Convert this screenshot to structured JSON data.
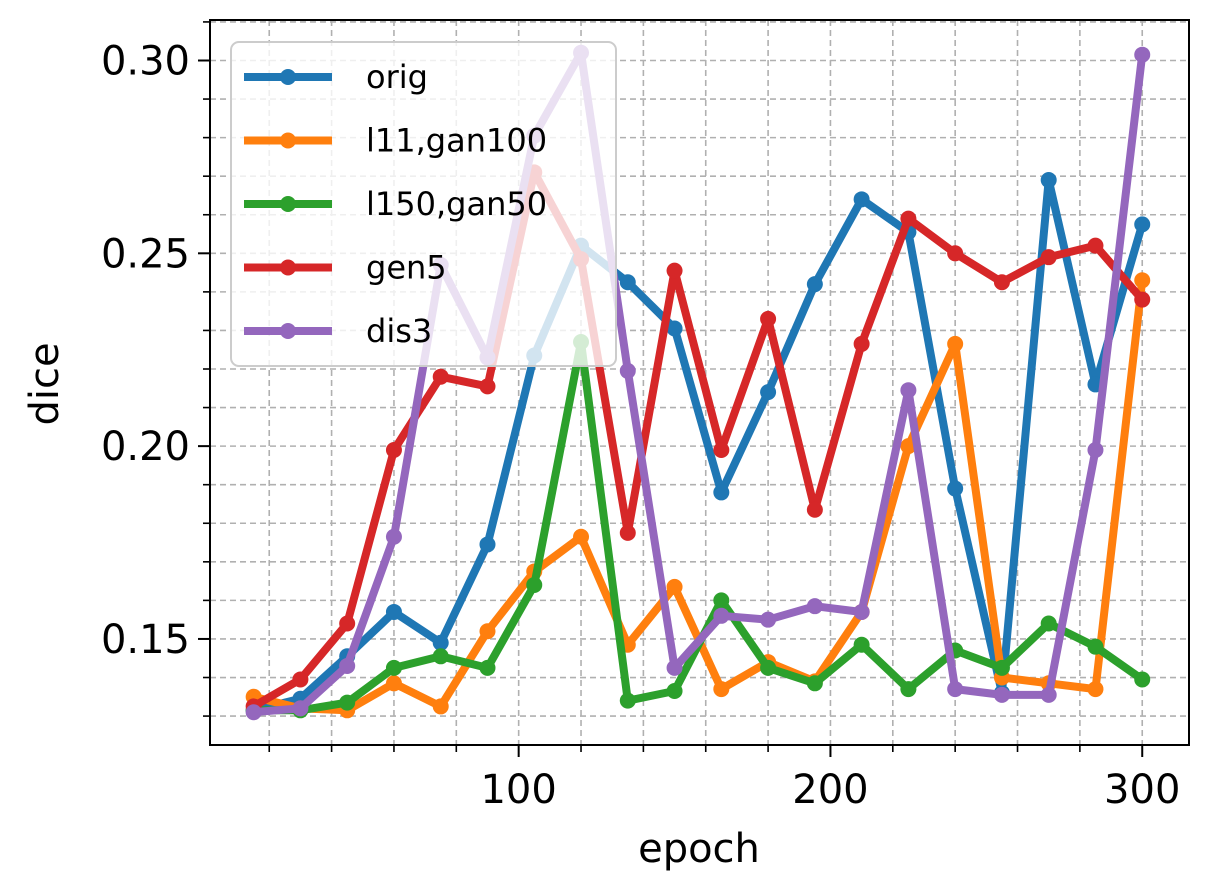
{
  "chart_data": {
    "type": "line",
    "xlabel": "epoch",
    "ylabel": "dice",
    "xlim": [
      1,
      315
    ],
    "ylim": [
      0.1225,
      0.3105
    ],
    "x_major_ticks": [
      100,
      200,
      300
    ],
    "x_major_tick_labels": [
      "100",
      "200",
      "300"
    ],
    "x_minor_ticks": [
      20,
      40,
      60,
      80,
      120,
      140,
      160,
      180,
      220,
      240,
      260,
      280
    ],
    "y_major_ticks": [
      0.15,
      0.2,
      0.25,
      0.3
    ],
    "y_major_tick_labels": [
      "0.15",
      "0.20",
      "0.25",
      "0.30"
    ],
    "y_minor_ticks": [
      0.13,
      0.14,
      0.16,
      0.17,
      0.18,
      0.19,
      0.21,
      0.22,
      0.23,
      0.24,
      0.26,
      0.27,
      0.28,
      0.29,
      0.31
    ],
    "grid": true,
    "legend_position": "top-left",
    "x": [
      15,
      30,
      45,
      60,
      75,
      90,
      105,
      120,
      135,
      150,
      165,
      180,
      195,
      210,
      225,
      240,
      255,
      270,
      285,
      300
    ],
    "series": [
      {
        "name": "orig",
        "color": "#1f77b4",
        "values": [
          0.1315,
          0.1345,
          0.1455,
          0.157,
          0.149,
          0.1745,
          0.2235,
          0.252,
          0.2425,
          0.2305,
          0.188,
          0.214,
          0.242,
          0.264,
          0.2555,
          0.189,
          0.136,
          0.269,
          0.216,
          0.2575
        ]
      },
      {
        "name": "l11,gan100",
        "color": "#ff7f0e",
        "values": [
          0.135,
          0.132,
          0.1315,
          0.1385,
          0.1325,
          0.152,
          0.1675,
          0.1765,
          0.1485,
          0.1635,
          0.137,
          0.144,
          0.139,
          0.157,
          0.2,
          0.2265,
          0.14,
          0.1385,
          0.137,
          0.243
        ]
      },
      {
        "name": "l150,gan50",
        "color": "#2ca02c",
        "values": [
          0.1315,
          0.1315,
          0.1335,
          0.1425,
          0.1455,
          0.1425,
          0.164,
          0.227,
          0.134,
          0.1365,
          0.16,
          0.1425,
          0.1385,
          0.1485,
          0.137,
          0.147,
          0.1425,
          0.154,
          0.148,
          0.1395
        ]
      },
      {
        "name": "gen5",
        "color": "#d62728",
        "values": [
          0.1325,
          0.1395,
          0.154,
          0.199,
          0.218,
          0.2155,
          0.271,
          0.2485,
          0.1775,
          0.2455,
          0.199,
          0.233,
          0.1835,
          0.2265,
          0.259,
          0.25,
          0.2425,
          0.249,
          0.252,
          0.238
        ]
      },
      {
        "name": "dis3",
        "color": "#9467bd",
        "values": [
          0.131,
          0.132,
          0.143,
          0.1765,
          0.247,
          0.223,
          0.2805,
          0.302,
          0.2195,
          0.1425,
          0.156,
          0.155,
          0.1585,
          0.157,
          0.2145,
          0.137,
          0.1355,
          0.1355,
          0.199,
          0.3015
        ]
      }
    ]
  }
}
